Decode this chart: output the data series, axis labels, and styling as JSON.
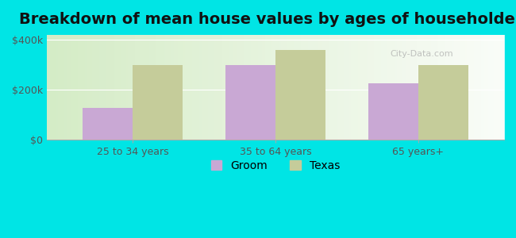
{
  "title": "Breakdown of mean house values by ages of householders",
  "categories": [
    "25 to 34 years",
    "35 to 64 years",
    "65 years+"
  ],
  "groom_values": [
    125000,
    300000,
    225000
  ],
  "texas_values": [
    300000,
    360000,
    300000
  ],
  "groom_color": "#c9a8d4",
  "texas_color": "#c5cc9a",
  "background_color": "#00e5e5",
  "plot_bg_color": "#e8f5e0",
  "ylim": [
    0,
    420000
  ],
  "yticks": [
    0,
    200000,
    400000
  ],
  "ytick_labels": [
    "$0",
    "$200k",
    "$400k"
  ],
  "legend_groom": "Groom",
  "legend_texas": "Texas",
  "bar_width": 0.35,
  "title_fontsize": 14,
  "tick_fontsize": 9,
  "legend_fontsize": 10
}
